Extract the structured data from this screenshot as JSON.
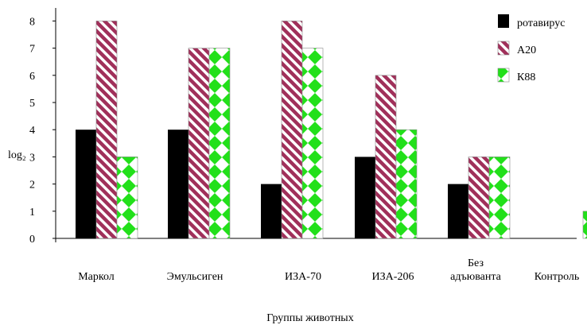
{
  "chart_data": {
    "type": "bar",
    "categories": [
      "Маркол",
      "Эмульсиген",
      "ИЗА-70",
      "ИЗА-206",
      "Без адъюванта",
      "Контроль"
    ],
    "series": [
      {
        "name": "ротавирус",
        "values": [
          4,
          4,
          2,
          3,
          2,
          0
        ],
        "pattern": "solid",
        "color": "#000000"
      },
      {
        "name": "А20",
        "values": [
          8,
          7,
          8,
          6,
          3,
          0
        ],
        "pattern": "diagonal-stripes",
        "color": "#a0305a"
      },
      {
        "name": "К88",
        "values": [
          3,
          7,
          7,
          4,
          3,
          1
        ],
        "pattern": "diamonds",
        "color": "#22e01a"
      }
    ],
    "yticks": [
      0,
      1,
      2,
      3,
      4,
      5,
      6,
      7,
      8
    ],
    "ylim": [
      0,
      8.5
    ],
    "ylabel": "log₂",
    "xlabel": "Группы животных",
    "title": "",
    "grid": false,
    "legend_position": "top-right"
  }
}
